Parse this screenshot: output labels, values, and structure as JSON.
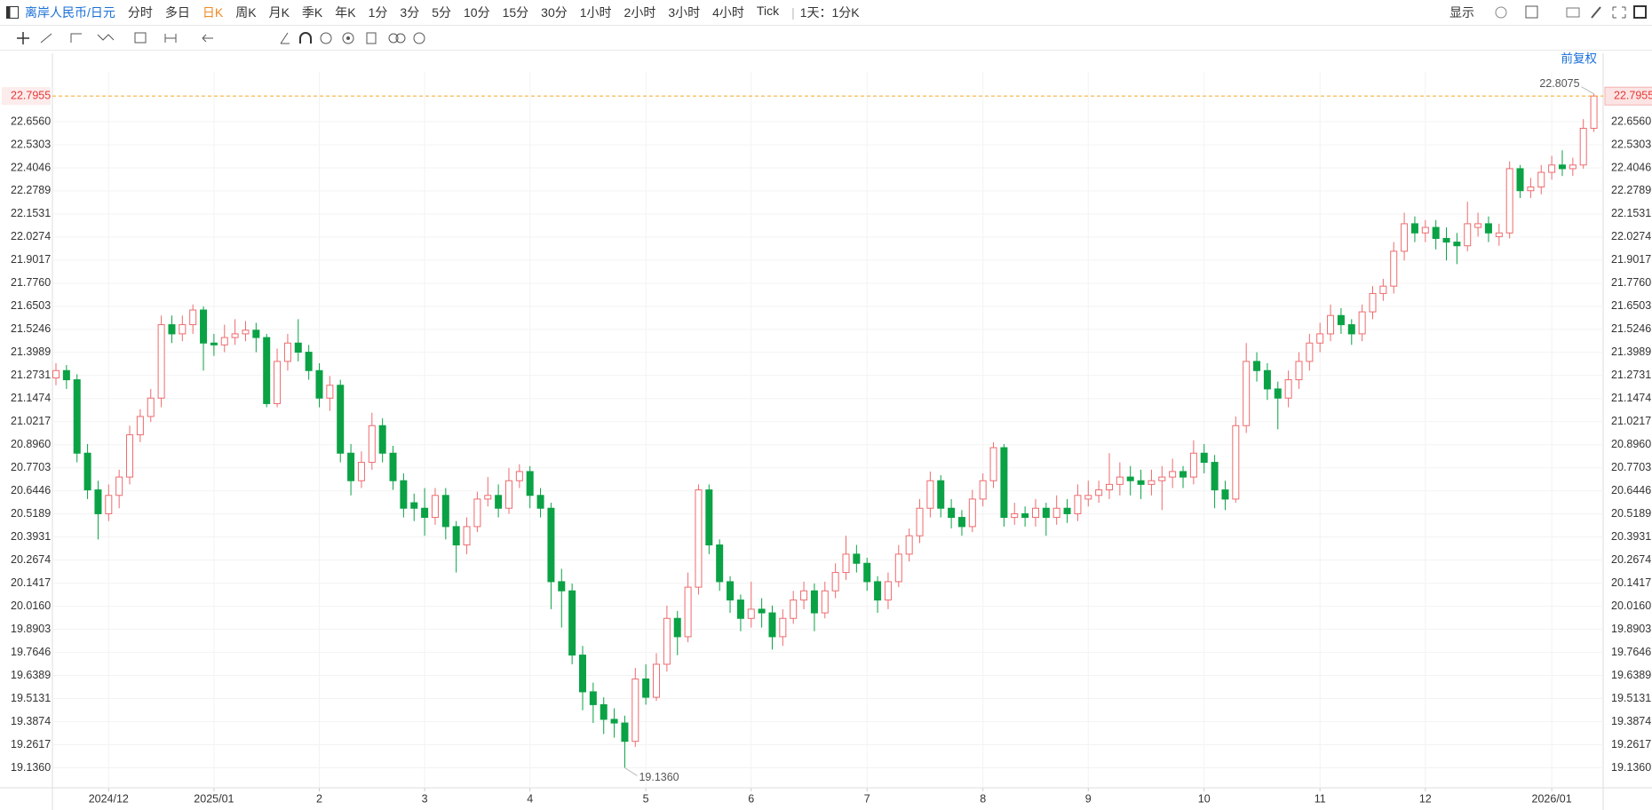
{
  "toolbar": {
    "symbol": "离岸人民币/日元",
    "periods": [
      "分时",
      "多日",
      "日K",
      "周K",
      "月K",
      "季K",
      "年K",
      "1分",
      "3分",
      "5分",
      "10分",
      "15分",
      "30分",
      "1小时",
      "2小时",
      "3小时",
      "4小时",
      "Tick"
    ],
    "active_period": 2,
    "range": "1天：1分K",
    "display": "显示"
  },
  "chart_data": {
    "type": "candlestick",
    "adjust": "前复权",
    "categories": [
      null,
      null,
      null,
      null,
      null,
      "2024/12",
      null,
      null,
      null,
      null,
      null,
      null,
      null,
      null,
      null,
      "2025/01",
      null,
      null,
      null,
      null,
      null,
      null,
      null,
      null,
      null,
      "2",
      null,
      null,
      null,
      null,
      null,
      null,
      null,
      null,
      null,
      "3",
      null,
      null,
      null,
      null,
      null,
      null,
      null,
      null,
      null,
      "4",
      null,
      null,
      null,
      null,
      null,
      null,
      null,
      null,
      null,
      null,
      "5",
      null,
      null,
      null,
      null,
      null,
      null,
      null,
      null,
      null,
      "6",
      null,
      null,
      null,
      null,
      null,
      null,
      null,
      null,
      null,
      null,
      "7",
      null,
      null,
      null,
      null,
      null,
      null,
      null,
      null,
      null,
      null,
      "8",
      null,
      null,
      null,
      null,
      null,
      null,
      null,
      null,
      null,
      "9",
      null,
      null,
      null,
      null,
      null,
      null,
      null,
      null,
      null,
      null,
      "10",
      null,
      null,
      null,
      null,
      null,
      null,
      null,
      null,
      null,
      null,
      "11",
      null,
      null,
      null,
      null,
      null,
      null,
      null,
      null,
      null,
      "12",
      null,
      null,
      null,
      null,
      null,
      null,
      null,
      null,
      null,
      null,
      null,
      "2026/01",
      null,
      null,
      null,
      null
    ],
    "open": [
      21.26,
      21.3,
      21.25,
      20.85,
      20.65,
      20.52,
      20.62,
      20.72,
      20.95,
      21.05,
      21.15,
      21.55,
      21.5,
      21.55,
      21.63,
      21.45,
      21.44,
      21.48,
      21.5,
      21.52,
      21.48,
      21.12,
      21.35,
      21.45,
      21.4,
      21.3,
      21.15,
      21.22,
      20.85,
      20.7,
      20.8,
      21.0,
      20.85,
      20.7,
      20.58,
      20.55,
      20.5,
      20.62,
      20.45,
      20.35,
      20.45,
      20.6,
      20.62,
      20.55,
      20.7,
      20.75,
      20.62,
      20.55,
      20.15,
      20.1,
      19.75,
      19.55,
      19.48,
      19.4,
      19.38,
      19.28,
      19.62,
      19.52,
      19.7,
      19.95,
      19.85,
      20.12,
      20.65,
      20.35,
      20.15,
      20.05,
      19.95,
      20.0,
      19.98,
      19.85,
      19.95,
      20.05,
      20.1,
      19.98,
      20.1,
      20.2,
      20.3,
      20.25,
      20.15,
      20.05,
      20.15,
      20.3,
      20.4,
      20.55,
      20.7,
      20.55,
      20.5,
      20.45,
      20.6,
      20.7,
      20.88,
      20.5,
      20.52,
      20.5,
      20.55,
      20.5,
      20.55,
      20.52,
      20.6,
      20.62,
      20.65,
      20.68,
      20.72,
      20.7,
      20.68,
      20.7,
      20.72,
      20.75,
      20.72,
      20.85,
      20.8,
      20.65,
      20.6,
      21.0,
      21.35,
      21.3,
      21.2,
      21.15,
      21.25,
      21.35,
      21.45,
      21.5,
      21.6,
      21.55,
      21.5,
      21.62,
      21.72,
      21.76,
      21.95,
      22.1,
      22.05,
      22.08,
      22.02,
      22.0,
      21.98,
      22.08,
      22.1,
      22.03,
      22.05,
      22.4,
      22.28,
      22.3,
      22.38,
      22.42,
      22.4,
      22.42,
      22.62
    ],
    "high": [
      21.34,
      21.33,
      21.28,
      20.9,
      20.7,
      20.68,
      20.76,
      21.0,
      21.09,
      21.2,
      21.6,
      21.6,
      21.6,
      21.66,
      21.65,
      21.5,
      21.55,
      21.58,
      21.57,
      21.56,
      21.5,
      21.42,
      21.5,
      21.58,
      21.44,
      21.34,
      21.27,
      21.25,
      20.9,
      20.86,
      21.07,
      21.04,
      20.89,
      20.74,
      20.63,
      20.66,
      20.66,
      20.66,
      20.48,
      20.5,
      20.64,
      20.72,
      20.68,
      20.77,
      20.79,
      20.78,
      20.66,
      20.58,
      20.22,
      20.14,
      19.8,
      19.6,
      19.52,
      19.46,
      19.42,
      19.68,
      19.7,
      19.76,
      20.02,
      19.99,
      20.2,
      20.68,
      20.68,
      20.38,
      20.18,
      20.08,
      20.15,
      20.06,
      20.02,
      20.0,
      20.1,
      20.15,
      20.14,
      20.15,
      20.25,
      20.4,
      20.35,
      20.28,
      20.18,
      20.2,
      20.35,
      20.44,
      20.6,
      20.75,
      20.73,
      20.6,
      20.54,
      20.65,
      20.74,
      20.91,
      20.9,
      20.58,
      20.56,
      20.6,
      20.58,
      20.62,
      20.6,
      20.68,
      20.7,
      20.7,
      20.85,
      20.8,
      20.78,
      20.76,
      20.76,
      20.78,
      20.82,
      20.78,
      20.92,
      20.9,
      20.84,
      20.7,
      21.05,
      21.45,
      21.4,
      21.34,
      21.24,
      21.3,
      21.4,
      21.5,
      21.56,
      21.66,
      21.64,
      21.58,
      21.66,
      21.76,
      21.8,
      22.0,
      22.16,
      22.14,
      22.12,
      22.12,
      22.08,
      22.05,
      22.22,
      22.16,
      22.14,
      22.1,
      22.44,
      22.42,
      22.35,
      22.42,
      22.47,
      22.5,
      22.46,
      22.67,
      22.8075
    ],
    "low": [
      21.22,
      21.2,
      20.8,
      20.6,
      20.38,
      20.48,
      20.55,
      20.68,
      20.91,
      21.02,
      21.1,
      21.45,
      21.46,
      21.5,
      21.3,
      21.38,
      21.4,
      21.44,
      21.46,
      21.4,
      21.1,
      21.1,
      21.3,
      21.35,
      21.25,
      21.1,
      21.08,
      20.8,
      20.62,
      20.66,
      20.76,
      20.8,
      20.65,
      20.5,
      20.48,
      20.4,
      20.46,
      20.38,
      20.2,
      20.3,
      20.42,
      20.56,
      20.5,
      20.52,
      20.66,
      20.55,
      20.5,
      20.0,
      19.9,
      19.7,
      19.45,
      19.38,
      19.32,
      19.3,
      19.136,
      19.25,
      19.48,
      19.5,
      19.66,
      19.75,
      19.82,
      20.08,
      20.3,
      20.1,
      19.98,
      19.88,
      19.9,
      19.9,
      19.78,
      19.8,
      19.92,
      20.0,
      19.88,
      19.95,
      20.06,
      20.16,
      20.2,
      20.1,
      19.98,
      20.0,
      20.12,
      20.26,
      20.36,
      20.5,
      20.5,
      20.44,
      20.4,
      20.42,
      20.56,
      20.66,
      20.45,
      20.46,
      20.45,
      20.45,
      20.4,
      20.46,
      20.47,
      20.48,
      20.56,
      20.58,
      20.6,
      20.62,
      20.62,
      20.6,
      20.62,
      20.54,
      20.66,
      20.66,
      20.68,
      20.74,
      20.55,
      20.54,
      20.58,
      20.96,
      21.24,
      21.14,
      20.98,
      21.1,
      21.2,
      21.3,
      21.4,
      21.46,
      21.5,
      21.44,
      21.46,
      21.58,
      21.68,
      21.72,
      21.9,
      22.0,
      22.0,
      21.96,
      21.9,
      21.88,
      21.95,
      22.03,
      22.0,
      21.98,
      22.02,
      22.24,
      22.24,
      22.26,
      22.34,
      22.36,
      22.36,
      22.4,
      22.6
    ],
    "close": [
      21.3,
      21.25,
      20.85,
      20.65,
      20.52,
      20.62,
      20.72,
      20.95,
      21.05,
      21.15,
      21.55,
      21.5,
      21.55,
      21.63,
      21.45,
      21.44,
      21.48,
      21.5,
      21.52,
      21.48,
      21.12,
      21.35,
      21.45,
      21.4,
      21.3,
      21.15,
      21.22,
      20.85,
      20.7,
      20.8,
      21.0,
      20.85,
      20.7,
      20.55,
      20.55,
      20.5,
      20.62,
      20.45,
      20.35,
      20.45,
      20.6,
      20.62,
      20.55,
      20.7,
      20.75,
      20.62,
      20.55,
      20.15,
      20.1,
      19.75,
      19.55,
      19.48,
      19.4,
      19.38,
      19.28,
      19.62,
      19.52,
      19.7,
      19.95,
      19.85,
      20.12,
      20.65,
      20.35,
      20.15,
      20.05,
      19.95,
      20.0,
      19.98,
      19.85,
      19.95,
      20.05,
      20.1,
      19.98,
      20.1,
      20.2,
      20.3,
      20.25,
      20.15,
      20.05,
      20.15,
      20.3,
      20.4,
      20.55,
      20.7,
      20.55,
      20.5,
      20.45,
      20.6,
      20.7,
      20.88,
      20.5,
      20.52,
      20.5,
      20.55,
      20.5,
      20.55,
      20.52,
      20.62,
      20.62,
      20.65,
      20.68,
      20.72,
      20.7,
      20.68,
      20.7,
      20.72,
      20.75,
      20.72,
      20.85,
      20.8,
      20.65,
      20.6,
      21.0,
      21.35,
      21.3,
      21.2,
      21.15,
      21.25,
      21.35,
      21.45,
      21.5,
      21.6,
      21.55,
      21.5,
      21.62,
      21.72,
      21.76,
      21.95,
      22.1,
      22.05,
      22.08,
      22.02,
      22.0,
      21.98,
      22.1,
      22.1,
      22.05,
      22.05,
      22.4,
      22.28,
      22.3,
      22.38,
      22.42,
      22.4,
      22.42,
      22.62,
      22.7955
    ],
    "up_color": "#ee6b6e",
    "down_color": "#0aa245",
    "last_color": "#f5a623",
    "ylim": [
      19.027,
      22.927
    ],
    "yticks": [
      {
        "value": 19.136,
        "label": "19.1360"
      },
      19.2617,
      19.3874,
      19.5131,
      19.6389,
      19.7646,
      19.8903,
      {
        "value": 20.016,
        "label": "20.0160"
      },
      20.1417,
      20.2674,
      20.3931,
      20.5189,
      20.6446,
      20.7703,
      {
        "value": 20.896,
        "label": "20.8960"
      },
      21.0217,
      21.1474,
      21.2731,
      21.3989,
      21.5246,
      21.6503,
      {
        "value": 21.776,
        "label": "21.7760"
      },
      21.9017,
      22.0274,
      22.1531,
      22.2789,
      22.4046,
      22.5303,
      {
        "value": 22.656,
        "label": "22.6560"
      }
    ],
    "last_price": 22.7955,
    "annotations": [
      22.8075,
      {
        "value": 19.136,
        "label": "19.1360"
      }
    ],
    "grid": true
  }
}
